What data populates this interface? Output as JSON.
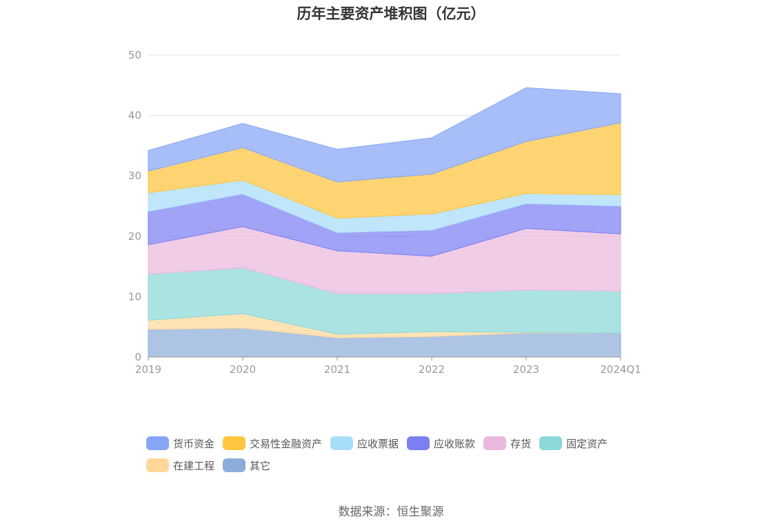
{
  "title": "历年主要资产堆积图（亿元）",
  "source": "数据来源：恒生聚源",
  "chart_data": {
    "type": "area",
    "stacked": true,
    "title": "历年主要资产堆积图（亿元）",
    "xlabel": "",
    "ylabel": "",
    "categories": [
      "2019",
      "2020",
      "2021",
      "2022",
      "2023",
      "2024Q1"
    ],
    "ylim": [
      0,
      50
    ],
    "yticks": [
      0,
      10,
      20,
      30,
      40,
      50
    ],
    "grid": true,
    "legend_position": "bottom",
    "series": [
      {
        "name": "其它",
        "color": "#8DADD9",
        "values": [
          4.6,
          4.8,
          3.2,
          3.4,
          4.0,
          4.0
        ]
      },
      {
        "name": "在建工程",
        "color": "#FFD899",
        "values": [
          1.5,
          2.4,
          0.6,
          0.8,
          0.1,
          0.0
        ]
      },
      {
        "name": "固定资产",
        "color": "#8AD8D8",
        "values": [
          7.6,
          7.6,
          6.7,
          6.3,
          7.0,
          6.9
        ]
      },
      {
        "name": "存货",
        "color": "#EAB8DD",
        "values": [
          4.9,
          6.8,
          7.1,
          6.2,
          10.2,
          9.5
        ]
      },
      {
        "name": "应收账款",
        "color": "#7B7FF2",
        "values": [
          5.5,
          5.4,
          3.0,
          4.3,
          4.1,
          4.6
        ]
      },
      {
        "name": "应收票据",
        "color": "#A8DDFA",
        "values": [
          3.1,
          2.3,
          2.4,
          2.7,
          1.7,
          1.9
        ]
      },
      {
        "name": "交易性金融资产",
        "color": "#FFC53D",
        "values": [
          3.6,
          5.4,
          6.0,
          6.6,
          8.6,
          11.9
        ]
      },
      {
        "name": "货币资金",
        "color": "#86A5F7",
        "values": [
          3.4,
          4.0,
          5.4,
          6.0,
          8.9,
          4.8
        ]
      }
    ]
  },
  "legend_order": [
    "货币资金",
    "交易性金融资产",
    "应收票据",
    "应收账款",
    "存货",
    "固定资产",
    "在建工程",
    "其它"
  ]
}
